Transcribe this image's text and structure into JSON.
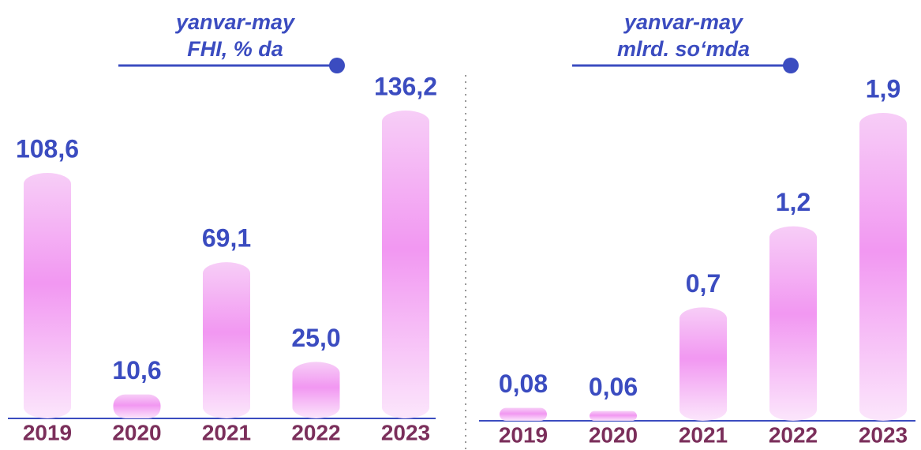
{
  "chart_data": [
    {
      "type": "bar",
      "title": "yanvar-may",
      "subtitle": "FHI, % da",
      "categories": [
        "2019",
        "2020",
        "2021",
        "2022",
        "2023"
      ],
      "values": [
        108.6,
        10.6,
        69.1,
        25.0,
        136.2
      ],
      "value_labels": [
        "108,6",
        "10,6",
        "69,1",
        "25,0",
        "136,2"
      ],
      "color": "#f08cf0"
    },
    {
      "type": "bar",
      "title": "yanvar-may",
      "subtitle": "mlrd. so‘mda",
      "categories": [
        "2019",
        "2020",
        "2021",
        "2022",
        "2023"
      ],
      "values": [
        0.08,
        0.06,
        0.7,
        1.2,
        1.9
      ],
      "value_labels": [
        "0,08",
        "0,06",
        "0,7",
        "1,2",
        "1,9"
      ],
      "color": "#f08cf0"
    }
  ]
}
